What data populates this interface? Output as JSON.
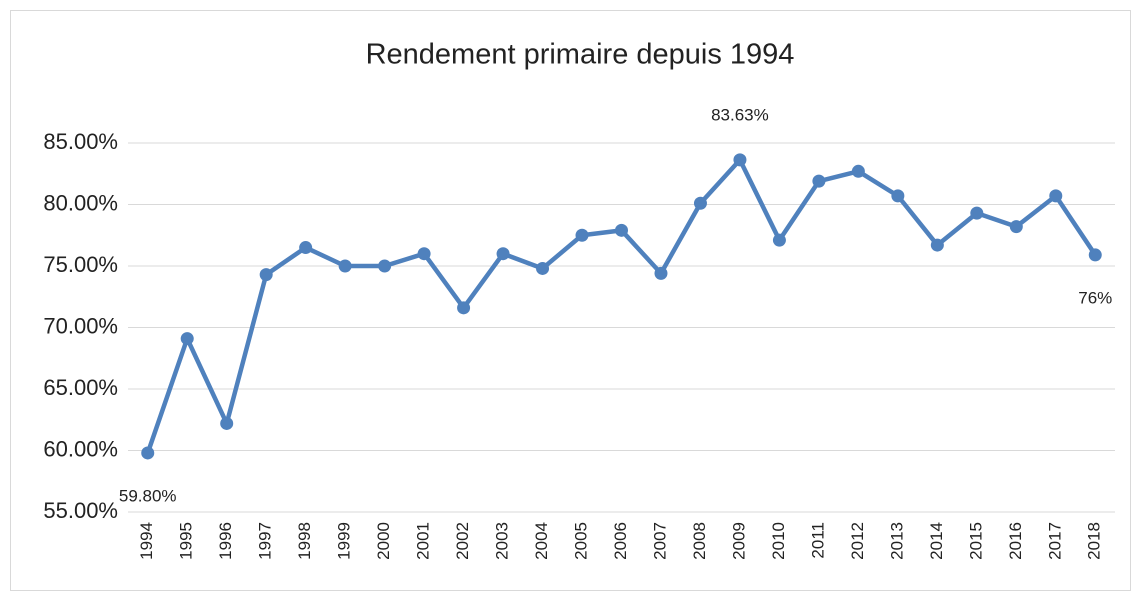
{
  "chart_data": {
    "type": "line",
    "title": "Rendement primaire depuis 1994",
    "categories": [
      "1994",
      "1995",
      "1996",
      "1997",
      "1998",
      "1999",
      "2000",
      "2001",
      "2002",
      "2003",
      "2004",
      "2005",
      "2006",
      "2007",
      "2008",
      "2009",
      "2010",
      "2011",
      "2012",
      "2013",
      "2014",
      "2015",
      "2016",
      "2017",
      "2018"
    ],
    "series": [
      {
        "name": "Rendement primaire",
        "color": "#4f81bd",
        "values": [
          59.8,
          69.1,
          62.2,
          74.3,
          76.5,
          75.0,
          75.0,
          76.0,
          71.6,
          76.0,
          74.8,
          77.5,
          77.9,
          74.4,
          80.1,
          83.63,
          77.1,
          81.9,
          82.7,
          80.7,
          76.7,
          79.3,
          78.2,
          80.7,
          75.9
        ],
        "value_labels": [
          "59.80%",
          null,
          null,
          null,
          null,
          null,
          null,
          null,
          null,
          null,
          null,
          null,
          null,
          null,
          null,
          "83.63%",
          null,
          null,
          null,
          null,
          null,
          null,
          null,
          null,
          "76%"
        ]
      }
    ],
    "ylim": [
      55,
      85
    ],
    "yticks": [
      {
        "value": 55,
        "label": "55.00%"
      },
      {
        "value": 60,
        "label": "60.00%"
      },
      {
        "value": 65,
        "label": "65.00%"
      },
      {
        "value": 70,
        "label": "70.00%"
      },
      {
        "value": 75,
        "label": "75.00%"
      },
      {
        "value": 80,
        "label": "80.00%"
      },
      {
        "value": 85,
        "label": "85.00%"
      }
    ],
    "grid": true
  }
}
